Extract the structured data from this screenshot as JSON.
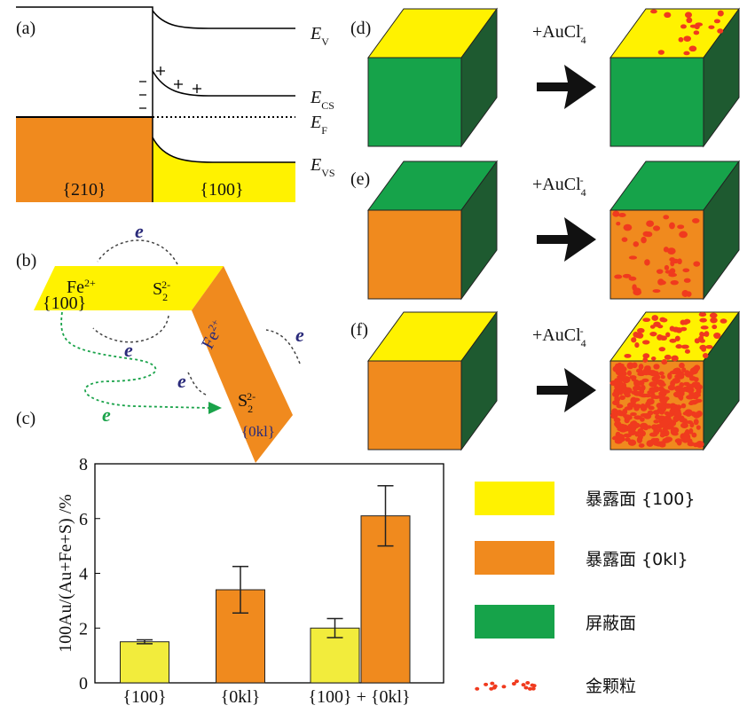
{
  "panel_labels": [
    "(a)",
    "(b)",
    "(c)",
    "(d)",
    "(e)",
    "(f)"
  ],
  "band_diagram": {
    "levels": [
      {
        "symbol": "E",
        "sub": "V"
      },
      {
        "symbol": "E",
        "sub": "CS"
      },
      {
        "symbol": "E",
        "sub": "F"
      },
      {
        "symbol": "E",
        "sub": "VS"
      }
    ],
    "facets": [
      "{210}",
      "{100}"
    ]
  },
  "scheme": {
    "fe": {
      "base": "Fe",
      "sup": "2+"
    },
    "s": {
      "base": "S",
      "sub": "2",
      "sup": "2-"
    },
    "facets": [
      "{100}",
      "{0kl}"
    ],
    "electron": "e"
  },
  "reagent": {
    "base": "+AuCl",
    "sub": "4",
    "sup": "-"
  },
  "legend": [
    "暴露面 {100}",
    "暴露面 {0kl}",
    "屏蔽面",
    "金颗粒"
  ],
  "chart_data": {
    "type": "bar",
    "y_label": "100Au/(Au+Fe+S) /%",
    "categories": [
      "{100}",
      "{0kl}",
      "{100} + {0kl}"
    ],
    "series": [
      {
        "name": "暴露面 {100}",
        "color": "#f2ec3c",
        "values": [
          1.5,
          null,
          2.0
        ],
        "errors": [
          0.07,
          null,
          0.35
        ]
      },
      {
        "name": "暴露面 {0kl}",
        "color": "#f08a1e",
        "values": [
          null,
          3.4,
          6.1
        ],
        "errors": [
          null,
          0.85,
          1.1
        ]
      }
    ],
    "ylim": [
      0,
      8
    ],
    "yticks": [
      0,
      2,
      4,
      6,
      8
    ]
  }
}
